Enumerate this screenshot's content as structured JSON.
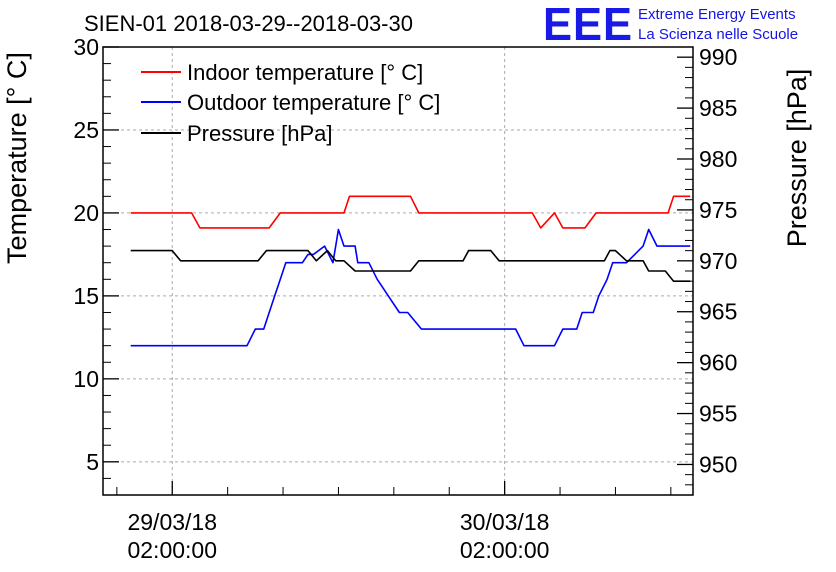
{
  "chart_data": {
    "type": "line",
    "title": "SIEN-01 2018-03-29--2018-03-30",
    "ylabel": "Temperature [° C]",
    "y2label": "Pressure [hPa]",
    "ylim": [
      3,
      30
    ],
    "y2lim": [
      947,
      991
    ],
    "grid": true,
    "legend_position": "top-left",
    "x_unit": "hours since 2018-03-29 02:00:00",
    "xlim": [
      -2.5,
      18.8
    ],
    "x_tick_labels": [
      {
        "x": 0,
        "date": "29/03/18",
        "time": "02:00:00"
      },
      {
        "x": 12,
        "date": "30/03/18",
        "time": "02:00:00"
      }
    ],
    "y_ticks": [
      5,
      10,
      15,
      20,
      25,
      30
    ],
    "y2_ticks": [
      950,
      955,
      960,
      965,
      970,
      975,
      980,
      985,
      990
    ],
    "series": [
      {
        "name": "Indoor temperature [° C]",
        "color": "#ff0000",
        "axis": "left",
        "x": [
          -1.5,
          0.7,
          1.0,
          3.5,
          3.9,
          6.2,
          6.4,
          8.6,
          8.9,
          13.0,
          13.3,
          13.8,
          14.1,
          14.9,
          15.3,
          17.9,
          18.1,
          18.7
        ],
        "y": [
          20,
          20,
          19.1,
          19.1,
          20,
          20,
          21,
          21,
          20,
          20,
          19.1,
          20,
          19.1,
          19.1,
          20,
          20,
          21,
          21
        ]
      },
      {
        "name": "Outdoor temperature [° C]",
        "color": "#0000ff",
        "axis": "left",
        "x": [
          -1.5,
          2.7,
          3.0,
          3.3,
          3.5,
          3.7,
          3.9,
          4.1,
          4.4,
          4.7,
          4.9,
          5.1,
          5.5,
          5.8,
          5.9,
          6.0,
          6.2,
          6.4,
          6.6,
          6.7,
          7.1,
          7.4,
          7.8,
          8.2,
          8.5,
          9.0,
          9.4,
          12.4,
          12.7,
          13.8,
          14.1,
          14.6,
          14.8,
          15.2,
          15.4,
          15.7,
          15.9,
          16.2,
          16.4,
          17.0,
          17.2,
          17.5,
          17.8,
          18.1,
          18.7
        ],
        "y": [
          12,
          12,
          13,
          13,
          14,
          15,
          16,
          17,
          17,
          17,
          17.5,
          17.5,
          18,
          17,
          18,
          19,
          18,
          18,
          18,
          17,
          17,
          16,
          15,
          14,
          14,
          13,
          13,
          13,
          12,
          12,
          13,
          13,
          14,
          14,
          15,
          16,
          17,
          17,
          17,
          18,
          19,
          18,
          18,
          18,
          18
        ]
      },
      {
        "name": "Pressure [hPa]",
        "color": "#000000",
        "axis": "right",
        "x": [
          -1.5,
          0.0,
          0.3,
          3.1,
          3.4,
          4.9,
          5.2,
          5.6,
          5.9,
          6.2,
          6.6,
          6.9,
          8.6,
          8.9,
          9.2,
          10.5,
          10.7,
          11.5,
          11.8,
          15.6,
          15.8,
          16.0,
          16.4,
          17.0,
          17.2,
          17.8,
          18.1,
          18.7
        ],
        "y": [
          971,
          971,
          970,
          970,
          971,
          971,
          970,
          971,
          970,
          970,
          969,
          969,
          969,
          970,
          970,
          970,
          971,
          971,
          970,
          970,
          971,
          971,
          970,
          970,
          969,
          969,
          968,
          968
        ]
      }
    ]
  },
  "logo": {
    "mark": "EEE",
    "line1": "Extreme Energy Events",
    "line2": "La Scienza nelle Scuole"
  }
}
